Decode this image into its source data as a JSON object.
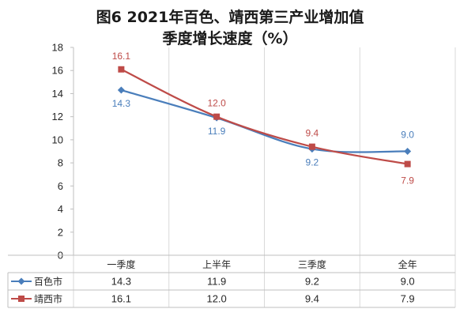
{
  "chart_data": {
    "type": "line",
    "title_line1": "图6  2021年百色、靖西第三产业增加值",
    "title_line2": "季度增长速度（%）",
    "categories": [
      "一季度",
      "上半年",
      "三季度",
      "全年"
    ],
    "ylim": [
      0,
      18
    ],
    "yticks": [
      "0",
      "2",
      "4",
      "6",
      "8",
      "10",
      "12",
      "14",
      "16",
      "18"
    ],
    "grid": "vertical",
    "legend": "table-left",
    "series": [
      {
        "name": "百色市",
        "values": [
          14.3,
          11.9,
          9.2,
          9.0
        ],
        "labels": [
          "14.3",
          "11.9",
          "9.2",
          "9.0"
        ],
        "color": "#4a7ebb",
        "marker": "diamond"
      },
      {
        "name": "靖西市",
        "values": [
          16.1,
          12.0,
          9.4,
          7.9
        ],
        "labels": [
          "16.1",
          "12.0",
          "9.4",
          "7.9"
        ],
        "color": "#be4b48",
        "marker": "square"
      }
    ]
  }
}
